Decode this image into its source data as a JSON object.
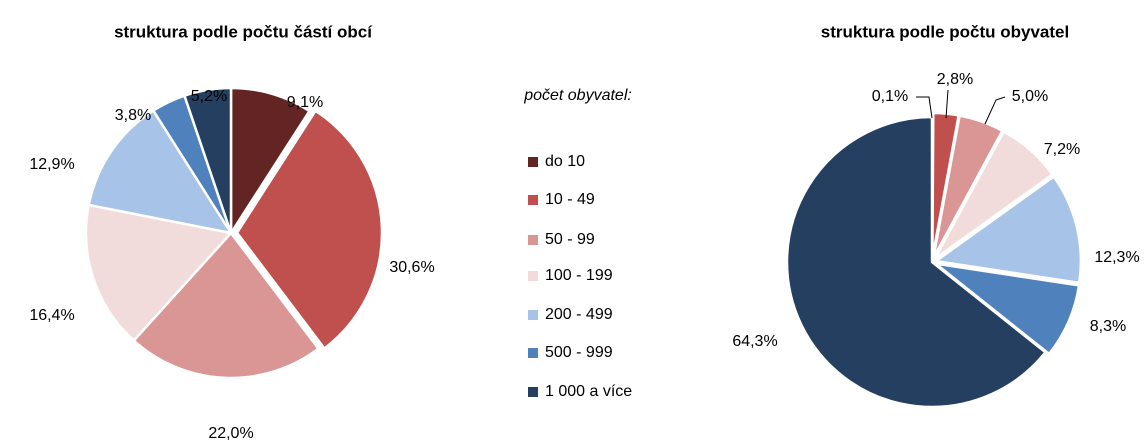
{
  "legend": {
    "title": "počet obyvatel:",
    "categories": [
      "do 10",
      "10 - 49",
      "50 - 99",
      "100 - 199",
      "200 - 499",
      "500 - 999",
      "1 000 a více"
    ],
    "colors": [
      "#632523",
      "#c0504d",
      "#d99694",
      "#f2dcdb",
      "#a7c4e8",
      "#4f81bd",
      "#243f60"
    ]
  },
  "chart_data": [
    {
      "type": "pie",
      "title": "struktura podle počtu částí obcí",
      "values": [
        9.1,
        30.6,
        22.0,
        16.4,
        12.9,
        3.8,
        5.2
      ],
      "value_labels": [
        "9,1%",
        "30,6%",
        "22,0%",
        "16,4%",
        "12,9%",
        "3,8%",
        "5,2%"
      ]
    },
    {
      "type": "pie",
      "title": "struktura podle počtu obyvatel",
      "values": [
        0.1,
        2.8,
        5.0,
        7.2,
        12.3,
        8.3,
        64.3
      ],
      "value_labels": [
        "0,1%",
        "2,8%",
        "5,0%",
        "7,2%",
        "12,3%",
        "8,3%",
        "64,3%"
      ]
    }
  ]
}
